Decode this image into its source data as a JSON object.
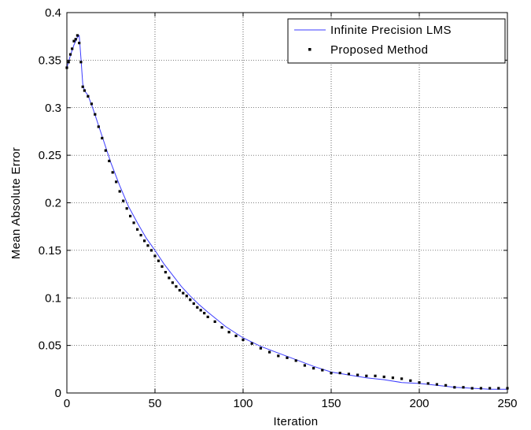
{
  "chart_data": {
    "type": "line",
    "title": "",
    "xlabel": "Iteration",
    "ylabel": "Mean Absolute Error",
    "xlim": [
      0,
      250
    ],
    "ylim": [
      0,
      0.4
    ],
    "x_ticks": [
      0,
      50,
      100,
      150,
      200,
      250
    ],
    "y_ticks": [
      0,
      0.05,
      0.1,
      0.15,
      0.2,
      0.25,
      0.3,
      0.35,
      0.4
    ],
    "x_tick_labels": [
      "0",
      "50",
      "100",
      "150",
      "200",
      "250"
    ],
    "y_tick_labels": [
      "0",
      "0.05",
      "0.1",
      "0.15",
      "0.2",
      "0.25",
      "0.3",
      "0.35",
      "0.4"
    ],
    "grid": true,
    "legend_position": "top-right",
    "series": [
      {
        "name": "Infinite Precision LMS",
        "style": "line",
        "color": "#3b3bff",
        "x": [
          0,
          2,
          4,
          6,
          7,
          8,
          9,
          10,
          12,
          15,
          20,
          25,
          30,
          35,
          40,
          45,
          50,
          55,
          60,
          65,
          70,
          75,
          80,
          90,
          100,
          110,
          120,
          130,
          140,
          150,
          160,
          170,
          180,
          190,
          200,
          210,
          220,
          230,
          240,
          250
        ],
        "y": [
          0.342,
          0.355,
          0.366,
          0.374,
          0.376,
          0.352,
          0.325,
          0.318,
          0.313,
          0.298,
          0.27,
          0.242,
          0.218,
          0.196,
          0.179,
          0.163,
          0.15,
          0.136,
          0.124,
          0.112,
          0.102,
          0.093,
          0.085,
          0.07,
          0.058,
          0.049,
          0.042,
          0.035,
          0.028,
          0.022,
          0.019,
          0.016,
          0.014,
          0.011,
          0.01,
          0.008,
          0.006,
          0.005,
          0.004,
          0.004
        ]
      },
      {
        "name": "Proposed Method",
        "style": "markers",
        "color": "#000000",
        "x": [
          0,
          1,
          2,
          3,
          4,
          5,
          6,
          7,
          8,
          9,
          10,
          12,
          14,
          16,
          18,
          20,
          22,
          24,
          26,
          28,
          30,
          32,
          34,
          36,
          38,
          40,
          42,
          44,
          46,
          48,
          50,
          52,
          54,
          56,
          58,
          60,
          62,
          64,
          66,
          68,
          70,
          72,
          74,
          76,
          78,
          80,
          84,
          88,
          92,
          96,
          100,
          105,
          110,
          115,
          120,
          125,
          130,
          135,
          140,
          145,
          150,
          155,
          160,
          165,
          170,
          175,
          180,
          185,
          190,
          195,
          200,
          205,
          210,
          215,
          220,
          225,
          230,
          235,
          240,
          245,
          250
        ],
        "y": [
          0.342,
          0.348,
          0.356,
          0.362,
          0.37,
          0.372,
          0.376,
          0.368,
          0.348,
          0.322,
          0.318,
          0.312,
          0.304,
          0.293,
          0.28,
          0.268,
          0.255,
          0.244,
          0.232,
          0.222,
          0.212,
          0.202,
          0.194,
          0.186,
          0.179,
          0.172,
          0.166,
          0.16,
          0.155,
          0.15,
          0.144,
          0.139,
          0.133,
          0.127,
          0.121,
          0.116,
          0.112,
          0.108,
          0.105,
          0.102,
          0.098,
          0.094,
          0.09,
          0.087,
          0.084,
          0.08,
          0.075,
          0.069,
          0.064,
          0.06,
          0.056,
          0.052,
          0.047,
          0.043,
          0.039,
          0.037,
          0.034,
          0.029,
          0.026,
          0.024,
          0.021,
          0.021,
          0.02,
          0.019,
          0.018,
          0.018,
          0.017,
          0.016,
          0.015,
          0.013,
          0.011,
          0.01,
          0.009,
          0.008,
          0.006,
          0.006,
          0.005,
          0.005,
          0.005,
          0.005,
          0.005
        ]
      }
    ]
  }
}
